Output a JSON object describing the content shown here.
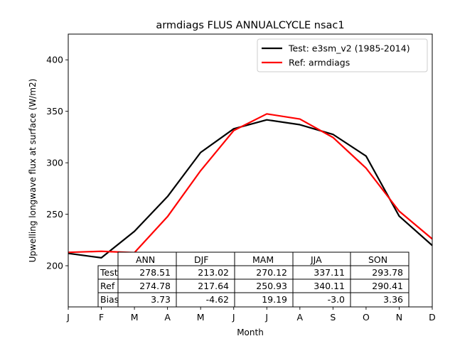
{
  "chart_data": {
    "type": "line",
    "title": "armdiags FLUS ANNUALCYCLE nsac1",
    "xlabel": "Month",
    "ylabel": "Upwelling longwave flux at surface (W/m2)",
    "categories": [
      "J",
      "F",
      "M",
      "A",
      "M",
      "J",
      "J",
      "A",
      "S",
      "O",
      "N",
      "D"
    ],
    "ylim": [
      160,
      425
    ],
    "yticks": [
      "200",
      "250",
      "300",
      "350",
      "400"
    ],
    "ytick_values": [
      200,
      250,
      300,
      350,
      400
    ],
    "grid": false,
    "legend_position": "top-right",
    "series": [
      {
        "name": "Test: e3sm_v2 (1985-2014)",
        "color": "#000000",
        "values": [
          212.0,
          207.7,
          233.4,
          267.2,
          310.0,
          333.0,
          341.7,
          337.0,
          327.6,
          306.5,
          248.2,
          219.7
        ]
      },
      {
        "name": "Ref: armdiags",
        "color": "#ff0000",
        "values": [
          213.0,
          214.0,
          212.7,
          247.7,
          292.3,
          331.3,
          347.5,
          342.5,
          324.6,
          294.8,
          253.0,
          226.0
        ]
      }
    ],
    "table": {
      "columns": [
        "ANN",
        "DJF",
        "MAM",
        "JJA",
        "SON"
      ],
      "rows": [
        {
          "label": "Test",
          "cells": [
            "278.51",
            "213.02",
            "270.12",
            "337.11",
            "293.78"
          ]
        },
        {
          "label": "Ref",
          "cells": [
            "274.78",
            "217.64",
            "250.93",
            "340.11",
            "290.41"
          ]
        },
        {
          "label": "Bias",
          "cells": [
            "3.73",
            "-4.62",
            "19.19",
            "-3.0",
            "3.36"
          ]
        }
      ]
    }
  }
}
